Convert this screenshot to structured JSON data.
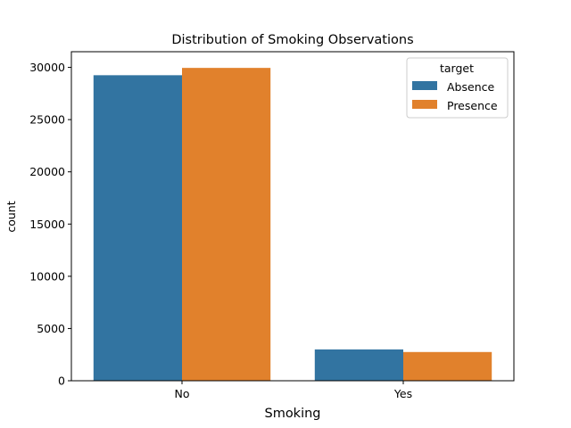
{
  "chart_data": {
    "type": "bar",
    "title": "Distribution of Smoking Observations",
    "xlabel": "Smoking",
    "ylabel": "count",
    "categories": [
      "No",
      "Yes"
    ],
    "series": [
      {
        "name": "Absence",
        "color": "#3274a1",
        "values": [
          29250,
          3000
        ]
      },
      {
        "name": "Presence",
        "color": "#e1812c",
        "values": [
          29950,
          2750
        ]
      }
    ],
    "ylim": [
      0,
      31500
    ],
    "yticks": [
      0,
      5000,
      10000,
      15000,
      20000,
      25000,
      30000
    ],
    "legend": {
      "title": "target",
      "position": "top-right"
    },
    "grid": false
  }
}
